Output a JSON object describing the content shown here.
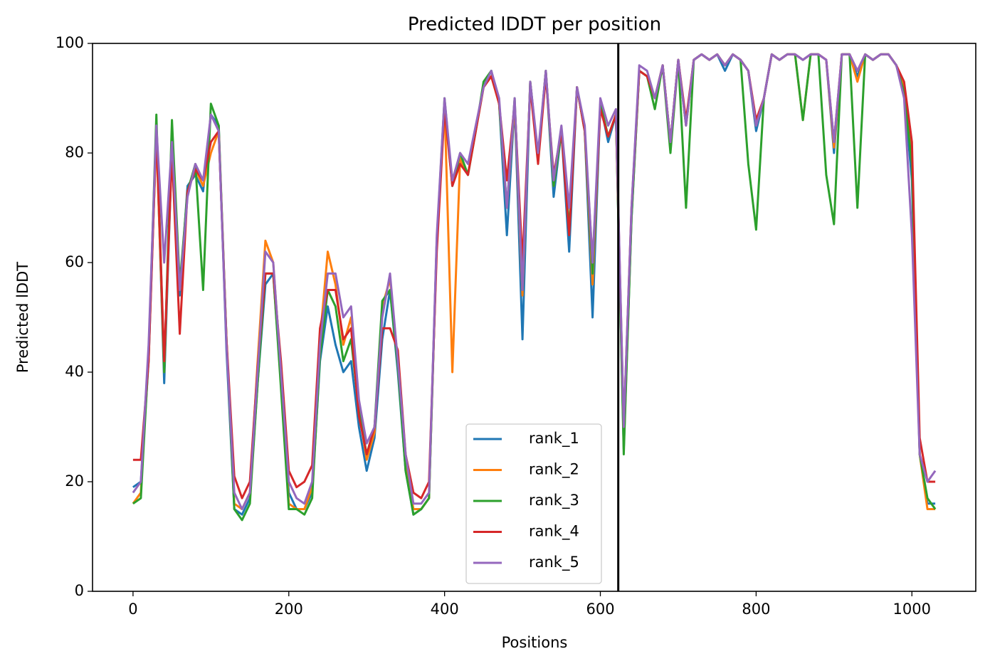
{
  "chart_data": {
    "type": "line",
    "title": "Predicted lDDT per position",
    "xlabel": "Positions",
    "ylabel": "Predicted lDDT",
    "x": [
      0,
      10,
      20,
      30,
      40,
      50,
      60,
      70,
      80,
      90,
      100,
      110,
      120,
      130,
      140,
      150,
      160,
      170,
      180,
      190,
      200,
      210,
      220,
      230,
      240,
      250,
      260,
      270,
      280,
      290,
      300,
      310,
      320,
      330,
      340,
      350,
      360,
      370,
      380,
      390,
      400,
      410,
      420,
      430,
      440,
      450,
      460,
      470,
      480,
      490,
      500,
      510,
      520,
      530,
      540,
      550,
      560,
      570,
      580,
      590,
      600,
      610,
      620,
      630,
      640,
      650,
      660,
      670,
      680,
      690,
      700,
      710,
      720,
      730,
      740,
      750,
      760,
      770,
      780,
      790,
      800,
      810,
      820,
      830,
      840,
      850,
      860,
      870,
      880,
      890,
      900,
      910,
      920,
      930,
      940,
      950,
      960,
      970,
      980,
      990,
      1000,
      1010,
      1020,
      1030
    ],
    "series": [
      {
        "name": "rank_1",
        "color": "#1f77b4",
        "values": [
          19,
          20,
          42,
          84,
          38,
          81,
          54,
          74,
          76,
          73,
          87,
          85,
          44,
          15,
          14,
          17,
          38,
          56,
          58,
          38,
          18,
          15,
          15,
          18,
          42,
          52,
          45,
          40,
          42,
          30,
          22,
          28,
          46,
          55,
          40,
          22,
          14,
          15,
          17,
          64,
          89,
          74,
          79,
          76,
          84,
          92,
          95,
          89,
          65,
          89,
          46,
          93,
          79,
          95,
          72,
          84,
          62,
          92,
          84,
          50,
          89,
          82,
          87,
          26,
          68,
          95,
          94,
          90,
          96,
          82,
          97,
          85,
          97,
          98,
          97,
          98,
          95,
          98,
          97,
          95,
          84,
          90,
          98,
          97,
          98,
          98,
          97,
          98,
          98,
          97,
          80,
          98,
          98,
          94,
          98,
          97,
          98,
          98,
          96,
          91,
          75,
          25,
          16,
          16
        ]
      },
      {
        "name": "rank_2",
        "color": "#ff7f0e",
        "values": [
          16,
          18,
          44,
          83,
          40,
          82,
          55,
          73,
          77,
          74,
          80,
          84,
          46,
          16,
          15,
          18,
          42,
          64,
          60,
          40,
          16,
          15,
          15,
          19,
          46,
          62,
          56,
          45,
          50,
          33,
          24,
          29,
          52,
          57,
          42,
          23,
          15,
          15,
          17,
          64,
          89,
          40,
          79,
          76,
          84,
          92,
          94,
          89,
          70,
          89,
          54,
          93,
          79,
          95,
          74,
          84,
          66,
          92,
          84,
          56,
          89,
          83,
          87,
          28,
          69,
          95,
          94,
          90,
          96,
          82,
          97,
          85,
          97,
          98,
          97,
          98,
          96,
          98,
          97,
          95,
          85,
          90,
          98,
          97,
          98,
          98,
          86,
          98,
          98,
          97,
          81,
          98,
          98,
          93,
          98,
          97,
          98,
          98,
          96,
          92,
          80,
          25,
          15,
          15
        ]
      },
      {
        "name": "rank_3",
        "color": "#2ca02c",
        "values": [
          16,
          17,
          43,
          87,
          40,
          86,
          56,
          73,
          78,
          55,
          89,
          85,
          46,
          15,
          13,
          16,
          38,
          58,
          58,
          37,
          15,
          15,
          14,
          17,
          43,
          55,
          52,
          42,
          46,
          33,
          25,
          30,
          53,
          55,
          41,
          22,
          14,
          15,
          17,
          64,
          90,
          74,
          80,
          76,
          84,
          93,
          95,
          89,
          70,
          90,
          55,
          93,
          79,
          95,
          74,
          84,
          66,
          92,
          84,
          58,
          89,
          83,
          87,
          25,
          68,
          95,
          94,
          88,
          96,
          80,
          97,
          70,
          97,
          98,
          97,
          98,
          96,
          98,
          97,
          78,
          66,
          90,
          98,
          97,
          98,
          98,
          86,
          98,
          98,
          76,
          67,
          98,
          98,
          70,
          98,
          97,
          98,
          98,
          96,
          91,
          78,
          25,
          17,
          15
        ]
      },
      {
        "name": "rank_4",
        "color": "#d62728",
        "values": [
          24,
          24,
          42,
          84,
          42,
          80,
          47,
          73,
          77,
          75,
          82,
          84,
          46,
          21,
          17,
          20,
          41,
          58,
          58,
          42,
          22,
          19,
          20,
          23,
          48,
          55,
          55,
          46,
          48,
          32,
          25,
          30,
          48,
          48,
          44,
          25,
          18,
          17,
          20,
          62,
          88,
          74,
          78,
          76,
          84,
          92,
          94,
          89,
          75,
          89,
          60,
          92,
          78,
          94,
          76,
          84,
          65,
          92,
          84,
          60,
          88,
          83,
          87,
          30,
          70,
          95,
          94,
          90,
          96,
          82,
          97,
          86,
          97,
          98,
          97,
          98,
          96,
          98,
          97,
          95,
          86,
          90,
          98,
          97,
          98,
          98,
          97,
          98,
          98,
          97,
          82,
          98,
          98,
          95,
          98,
          97,
          98,
          98,
          96,
          93,
          82,
          28,
          20,
          20
        ]
      },
      {
        "name": "rank_5",
        "color": "#9467bd",
        "values": [
          18,
          20,
          45,
          85,
          60,
          82,
          55,
          72,
          78,
          75,
          87,
          84,
          45,
          18,
          15,
          18,
          40,
          62,
          60,
          40,
          20,
          17,
          16,
          20,
          45,
          58,
          58,
          50,
          52,
          35,
          27,
          30,
          50,
          58,
          42,
          25,
          16,
          16,
          18,
          65,
          90,
          75,
          80,
          78,
          85,
          92,
          95,
          90,
          70,
          90,
          55,
          93,
          80,
          95,
          75,
          85,
          70,
          92,
          85,
          60,
          90,
          85,
          88,
          30,
          70,
          96,
          95,
          90,
          96,
          82,
          97,
          85,
          97,
          98,
          97,
          98,
          96,
          98,
          97,
          95,
          85,
          90,
          98,
          97,
          98,
          98,
          97,
          98,
          98,
          97,
          82,
          98,
          98,
          95,
          98,
          97,
          98,
          98,
          96,
          90,
          65,
          25,
          20,
          22
        ]
      }
    ],
    "xlim": [
      -52,
      1082
    ],
    "ylim": [
      0,
      100
    ],
    "xticks": [
      0,
      200,
      400,
      600,
      800,
      1000
    ],
    "yticks": [
      0,
      20,
      40,
      60,
      80,
      100
    ],
    "vlines": [
      623
    ],
    "legend": "best"
  }
}
